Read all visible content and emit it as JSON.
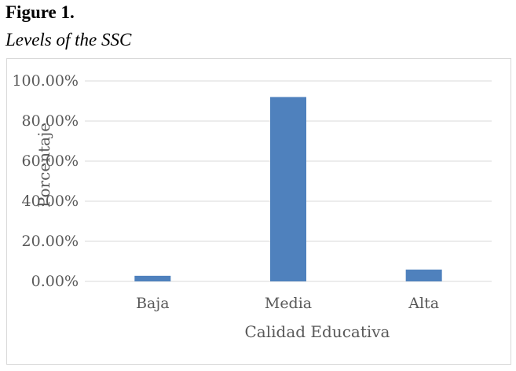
{
  "figure": {
    "label": "Figure 1.",
    "caption": "Levels of the SSC"
  },
  "chart_data": {
    "type": "bar",
    "categories": [
      "Baja",
      "Media",
      "Alta"
    ],
    "values": [
      2.8,
      92.0,
      5.9
    ],
    "value_format": "percent",
    "xlabel": "Calidad Educativa",
    "ylabel": "Porcentaje",
    "ylim": [
      0,
      100
    ],
    "yticks": [
      "0.00%",
      "20.00%",
      "40.00%",
      "60.00%",
      "80.00%",
      "100.00%"
    ],
    "grid": true,
    "legend": "none",
    "bar_color": "#4f81bd",
    "grid_color": "#d9d9d9"
  }
}
